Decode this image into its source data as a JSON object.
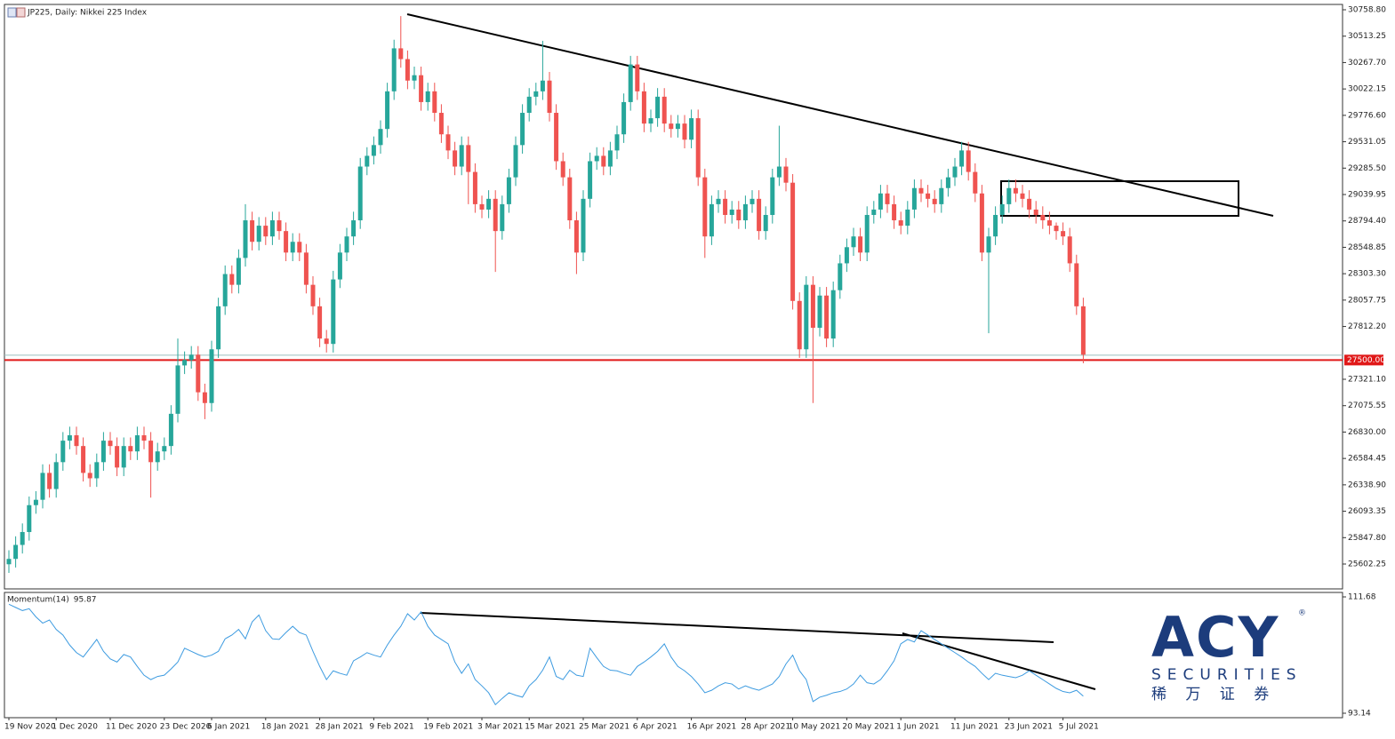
{
  "chart_data": {
    "type": "candlestick",
    "title": "JP225, Daily:  Nikkei 225 Index",
    "categories": [
      "19 Nov 2020",
      null,
      null,
      null,
      null,
      null,
      null,
      "1 Dec 2020",
      null,
      null,
      null,
      null,
      null,
      null,
      null,
      "11 Dec 2020",
      null,
      null,
      null,
      null,
      null,
      null,
      null,
      "23 Dec 2020",
      null,
      null,
      null,
      null,
      null,
      null,
      "6 Jan 2021",
      null,
      null,
      null,
      null,
      null,
      null,
      null,
      "18 Jan 2021",
      null,
      null,
      null,
      null,
      null,
      null,
      null,
      "28 Jan 2021",
      null,
      null,
      null,
      null,
      null,
      null,
      null,
      "9 Feb 2021",
      null,
      null,
      null,
      null,
      null,
      null,
      null,
      "19 Feb 2021",
      null,
      null,
      null,
      null,
      null,
      null,
      null,
      "3 Mar 2021",
      null,
      null,
      null,
      null,
      null,
      null,
      "15 Mar 2021",
      null,
      null,
      null,
      null,
      null,
      null,
      null,
      "25 Mar 2021",
      null,
      null,
      null,
      null,
      null,
      null,
      null,
      "6 Apr 2021",
      null,
      null,
      null,
      null,
      null,
      null,
      null,
      "16 Apr 2021",
      null,
      null,
      null,
      null,
      null,
      null,
      null,
      "28 Apr 2021",
      null,
      null,
      null,
      null,
      null,
      null,
      "10 May 2021",
      null,
      null,
      null,
      null,
      null,
      null,
      null,
      "20 May 2021",
      null,
      null,
      null,
      null,
      null,
      null,
      null,
      "1 Jun 2021",
      null,
      null,
      null,
      null,
      null,
      null,
      null,
      "11 Jun 2021",
      null,
      null,
      null,
      null,
      null,
      null,
      null,
      "23 Jun 2021",
      null,
      null,
      null,
      null,
      null,
      null,
      null,
      "5 Jul 2021",
      null,
      null,
      null
    ],
    "open": [
      25600,
      25650,
      25780,
      25900,
      26150,
      26200,
      26450,
      26300,
      26550,
      26750,
      26800,
      26700,
      26450,
      26400,
      26550,
      26750,
      26700,
      26500,
      26700,
      26650,
      26800,
      26750,
      26550,
      26650,
      26700,
      27000,
      27450,
      27500,
      27550,
      27200,
      27100,
      27600,
      28000,
      28300,
      28200,
      28450,
      28800,
      28600,
      28750,
      28650,
      28800,
      28700,
      28500,
      28600,
      28500,
      28200,
      28000,
      27700,
      27650,
      28250,
      28500,
      28650,
      28800,
      29300,
      29400,
      29500,
      29650,
      30000,
      30400,
      30300,
      30100,
      30150,
      29900,
      30000,
      29800,
      29600,
      29450,
      29300,
      29500,
      29250,
      28950,
      28900,
      29000,
      28700,
      28950,
      29200,
      29500,
      29800,
      29950,
      30000,
      30100,
      29800,
      29350,
      29200,
      28800,
      28500,
      29000,
      29350,
      29400,
      29300,
      29450,
      29600,
      29900,
      30250,
      30000,
      29700,
      29750,
      29950,
      29700,
      29650,
      29700,
      29550,
      29750,
      29200,
      28650,
      28950,
      29000,
      28850,
      28900,
      28800,
      28950,
      29000,
      28700,
      28850,
      29200,
      29300,
      29150,
      28050,
      27600,
      28200,
      27800,
      28100,
      27700,
      28150,
      28400,
      28550,
      28650,
      28500,
      28850,
      28900,
      29050,
      28950,
      28800,
      28750,
      28900,
      29100,
      29050,
      29000,
      28950,
      29100,
      29200,
      29300,
      29450,
      29250,
      29050,
      28500,
      28650,
      28850,
      28950,
      29100,
      29050,
      29000,
      28900,
      28850,
      28800,
      28750,
      28700,
      28650,
      28400,
      28000
    ],
    "high": [
      25730,
      25860,
      25980,
      26230,
      26280,
      26530,
      26530,
      26630,
      26830,
      26880,
      26880,
      26780,
      26530,
      26630,
      26830,
      26830,
      26780,
      26780,
      26780,
      26880,
      26880,
      26830,
      26730,
      26780,
      27080,
      27700,
      27580,
      27630,
      27630,
      27280,
      27680,
      28080,
      28380,
      28380,
      28530,
      28950,
      28880,
      28830,
      28830,
      28880,
      28880,
      28780,
      28680,
      28680,
      28580,
      28280,
      28080,
      27780,
      28330,
      28580,
      28730,
      28880,
      29380,
      29480,
      29580,
      29730,
      30080,
      30480,
      30700,
      30380,
      30230,
      30230,
      30080,
      30080,
      29880,
      29680,
      29530,
      29580,
      29580,
      29330,
      29030,
      29080,
      29080,
      29030,
      29280,
      29580,
      29880,
      30030,
      30080,
      30470,
      30180,
      29880,
      29430,
      29280,
      28880,
      29080,
      29430,
      29480,
      29480,
      29530,
      29680,
      29980,
      30330,
      30330,
      30080,
      29830,
      30030,
      30030,
      29780,
      29780,
      29780,
      29830,
      29830,
      29280,
      29030,
      29080,
      29080,
      28980,
      28980,
      29030,
      29080,
      29080,
      28930,
      29280,
      29680,
      29380,
      29230,
      28130,
      28280,
      28280,
      28180,
      28180,
      28230,
      28480,
      28630,
      28730,
      28730,
      28930,
      28980,
      29130,
      29130,
      29030,
      28880,
      28980,
      29180,
      29180,
      29130,
      29080,
      29180,
      29280,
      29380,
      29530,
      29530,
      29330,
      29130,
      28730,
      28930,
      29030,
      29180,
      29180,
      29130,
      29080,
      28980,
      28930,
      28880,
      28780,
      28780,
      28730,
      28480,
      28080
    ],
    "low": [
      25520,
      25570,
      25700,
      25820,
      26070,
      26120,
      26220,
      26220,
      26470,
      26670,
      26620,
      26370,
      26320,
      26320,
      26470,
      26620,
      26420,
      26420,
      26570,
      26570,
      26670,
      26220,
      26470,
      26570,
      26620,
      26920,
      27370,
      27420,
      27120,
      26950,
      27020,
      27520,
      27920,
      28120,
      28120,
      28370,
      28520,
      28520,
      28570,
      28570,
      28620,
      28420,
      28420,
      28420,
      28120,
      27920,
      27620,
      27570,
      27570,
      28170,
      28420,
      28570,
      28720,
      29220,
      29320,
      29420,
      29570,
      29920,
      30220,
      30020,
      30020,
      29820,
      29820,
      29720,
      29520,
      29370,
      29220,
      29220,
      28950,
      28870,
      28820,
      28820,
      28320,
      28620,
      28870,
      29120,
      29420,
      29720,
      29870,
      29920,
      29720,
      29270,
      29120,
      28720,
      28300,
      28420,
      28920,
      29270,
      29220,
      29220,
      29370,
      29520,
      29820,
      29920,
      29620,
      29620,
      29670,
      29620,
      29570,
      29570,
      29470,
      29470,
      29120,
      28450,
      28570,
      28870,
      28770,
      28770,
      28720,
      28720,
      28870,
      28620,
      28620,
      28770,
      29120,
      29070,
      27970,
      27520,
      27520,
      27100,
      27720,
      27620,
      27620,
      28070,
      28320,
      28470,
      28420,
      28420,
      28770,
      28820,
      28870,
      28720,
      28670,
      28670,
      28820,
      28970,
      28920,
      28870,
      28870,
      29020,
      29120,
      29220,
      29170,
      28970,
      28420,
      27750,
      28570,
      28770,
      28870,
      28970,
      28920,
      28820,
      28770,
      28720,
      28670,
      28620,
      28570,
      28320,
      27920,
      27470
    ],
    "close": [
      25650,
      25780,
      25900,
      26150,
      26200,
      26450,
      26300,
      26550,
      26750,
      26800,
      26700,
      26450,
      26400,
      26550,
      26750,
      26700,
      26500,
      26700,
      26650,
      26800,
      26750,
      26550,
      26650,
      26700,
      27000,
      27450,
      27500,
      27550,
      27200,
      27100,
      27600,
      28000,
      28300,
      28200,
      28450,
      28800,
      28600,
      28750,
      28650,
      28800,
      28700,
      28500,
      28600,
      28500,
      28200,
      28000,
      27700,
      27650,
      28250,
      28500,
      28650,
      28800,
      29300,
      29400,
      29500,
      29650,
      30000,
      30400,
      30300,
      30100,
      30150,
      29900,
      30000,
      29800,
      29600,
      29450,
      29300,
      29500,
      29250,
      28950,
      28900,
      29000,
      28700,
      28950,
      29200,
      29500,
      29800,
      29950,
      30000,
      30100,
      29800,
      29350,
      29200,
      28800,
      28500,
      29000,
      29350,
      29400,
      29300,
      29450,
      29600,
      29900,
      30250,
      30000,
      29700,
      29750,
      29950,
      29700,
      29650,
      29700,
      29550,
      29750,
      29200,
      28650,
      28950,
      29000,
      28850,
      28900,
      28800,
      28950,
      29000,
      28700,
      28850,
      29200,
      29300,
      29150,
      28050,
      27600,
      28200,
      27800,
      28100,
      27700,
      28150,
      28400,
      28550,
      28650,
      28500,
      28850,
      28900,
      29050,
      28950,
      28800,
      28750,
      28900,
      29100,
      29050,
      29000,
      28950,
      29100,
      29200,
      29300,
      29450,
      29250,
      29050,
      28500,
      28650,
      28850,
      28950,
      29100,
      29050,
      29000,
      28900,
      28850,
      28800,
      28750,
      28700,
      28650,
      28400,
      28000,
      27550
    ],
    "up_color": "#26a69a",
    "down_color": "#ef5350",
    "ylim": [
      25370.9,
      30808.4
    ],
    "yticks": [
      {
        "value": 30758.8,
        "label": "30758.80"
      },
      {
        "value": 30513.25,
        "label": "30513.25"
      },
      {
        "value": 30267.7,
        "label": "30267.70"
      },
      {
        "value": 30022.15,
        "label": "30022.15"
      },
      {
        "value": 29776.6,
        "label": "29776.60"
      },
      {
        "value": 29531.05,
        "label": "29531.05"
      },
      {
        "value": 29285.5,
        "label": "29285.50"
      },
      {
        "value": 29039.95,
        "label": "29039.95"
      },
      {
        "value": 28794.4,
        "label": "28794.40"
      },
      {
        "value": 28548.85,
        "label": "28548.85"
      },
      {
        "value": 28303.3,
        "label": "28303.30"
      },
      {
        "value": 28057.75,
        "label": "28057.75"
      },
      {
        "value": 27812.2,
        "label": "27812.20"
      },
      {
        "value": 27321.1,
        "label": "27321.10"
      },
      {
        "value": 27075.55,
        "label": "27075.55"
      },
      {
        "value": 26830,
        "label": "26830.00"
      },
      {
        "value": 26584.45,
        "label": "26584.45"
      },
      {
        "value": 26338.9,
        "label": "26338.90"
      },
      {
        "value": 26093.35,
        "label": "26093.35"
      },
      {
        "value": 25847.8,
        "label": "25847.80"
      },
      {
        "value": 25602.25,
        "label": "25602.25"
      }
    ],
    "grid": false,
    "bid_line": {
      "value": 27545,
      "color": "#9bbfbf"
    },
    "level_line": {
      "value": 27500,
      "value_label": "27500.00",
      "color": "#e01818"
    },
    "indicator": {
      "name": "Momentum(14)",
      "color": "#3d9be0",
      "ylim": [
        92.43,
        112.39
      ],
      "yticks": [
        111.68,
        93.14
      ],
      "values": [
        110.5,
        110.0,
        109.5,
        109.8,
        108.5,
        107.5,
        108.0,
        106.5,
        105.6,
        104.0,
        102.8,
        102.1,
        103.5,
        104.9,
        103.0,
        101.8,
        101.3,
        102.5,
        102.1,
        100.6,
        99.2,
        98.5,
        99.0,
        99.2,
        100.2,
        101.3,
        103.5,
        103.0,
        102.5,
        102.1,
        102.4,
        103.0,
        105.0,
        105.6,
        106.5,
        105.0,
        107.7,
        108.8,
        106.3,
        105.0,
        104.9,
        106.0,
        107.0,
        106.0,
        105.6,
        103.0,
        100.6,
        98.5,
        99.9,
        99.5,
        99.2,
        101.5,
        102.1,
        102.8,
        102.4,
        102.1,
        104.0,
        105.6,
        107.0,
        109.0,
        108.0,
        109.3,
        107.0,
        105.6,
        104.9,
        104.2,
        101.3,
        99.5,
        101.0,
        98.5,
        97.5,
        96.4,
        94.5,
        95.5,
        96.4,
        96.0,
        95.7,
        97.5,
        98.5,
        100.0,
        102.1,
        99.0,
        98.5,
        100.0,
        99.2,
        99.0,
        103.5,
        102.0,
        100.6,
        100.0,
        99.9,
        99.5,
        99.2,
        100.6,
        101.3,
        102.1,
        103.0,
        104.2,
        102.1,
        100.6,
        99.9,
        99.0,
        97.8,
        96.4,
        96.8,
        97.5,
        98.0,
        97.8,
        97.0,
        97.5,
        97.1,
        96.8,
        97.3,
        97.8,
        99.0,
        101.0,
        102.4,
        99.9,
        98.5,
        95.0,
        95.7,
        96.0,
        96.4,
        96.6,
        97.0,
        97.8,
        99.2,
        98.0,
        97.8,
        98.5,
        99.9,
        101.5,
        104.2,
        104.9,
        104.5,
        106.3,
        105.6,
        104.9,
        104.2,
        103.5,
        102.8,
        102.1,
        101.3,
        100.6,
        99.5,
        98.5,
        99.5,
        99.2,
        99.0,
        98.8,
        99.2,
        99.9,
        99.2,
        98.5,
        97.8,
        97.1,
        96.6,
        96.4,
        96.8,
        95.87
      ]
    }
  },
  "logo": {
    "name": "ACY",
    "mark": "®",
    "tagline": "SECURITIES",
    "chinese": "稀 万 证 券"
  }
}
